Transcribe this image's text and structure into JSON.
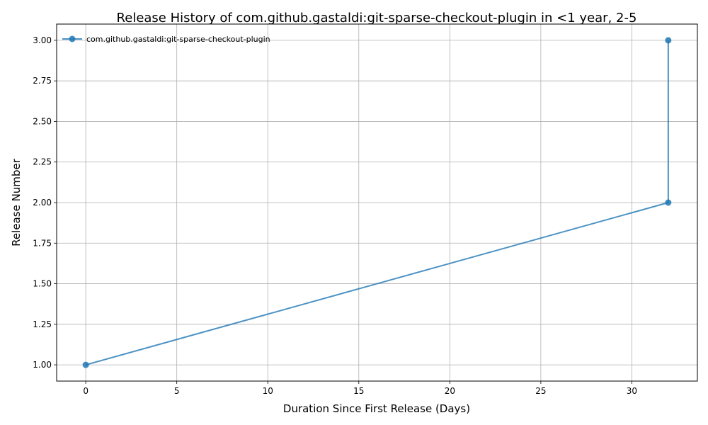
{
  "chart_data": {
    "type": "line",
    "title": "Release History of com.github.gastaldi:git-sparse-checkout-plugin in <1 year, 2-5",
    "xlabel": "Duration Since First Release (Days)",
    "ylabel": "Release Number",
    "xlim": [
      -1.6,
      33.6
    ],
    "ylim": [
      0.9,
      3.1
    ],
    "x_ticks": [
      0,
      5,
      10,
      15,
      20,
      25,
      30
    ],
    "y_ticks": [
      1.0,
      1.25,
      1.5,
      1.75,
      2.0,
      2.25,
      2.5,
      2.75,
      3.0
    ],
    "x_tick_labels": [
      "0",
      "5",
      "10",
      "15",
      "20",
      "25",
      "30"
    ],
    "y_tick_labels": [
      "1.00",
      "1.25",
      "1.50",
      "1.75",
      "2.00",
      "2.25",
      "2.50",
      "2.75",
      "3.00"
    ],
    "grid": true,
    "legend_position": "top-left",
    "series": [
      {
        "name": "com.github.gastaldi:git-sparse-checkout-plugin",
        "color": "#1f77b4",
        "x": [
          0,
          32,
          32
        ],
        "y": [
          1,
          2,
          3
        ]
      }
    ]
  }
}
